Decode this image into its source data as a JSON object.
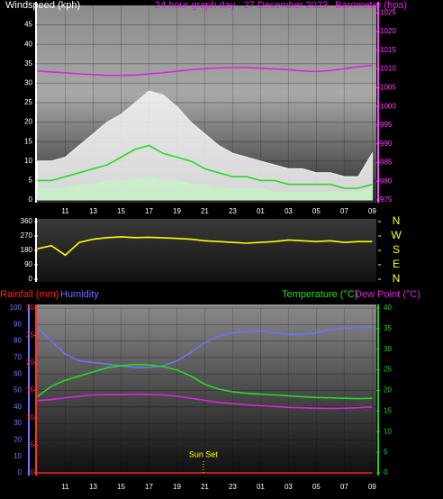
{
  "chart_data": [
    {
      "type": "line",
      "title": "24 hour graph day : 27 December 2023",
      "ylabel": "Windspeed (kph)",
      "y2label": "Barometer (hpa)",
      "xlim": [
        8.9,
        33.3
      ],
      "xticks": [
        11,
        13,
        15,
        17,
        19,
        21,
        23,
        {
          "value": 25,
          "label": "01"
        },
        {
          "value": 27,
          "label": "03"
        },
        {
          "value": 29,
          "label": "05"
        },
        {
          "value": 31,
          "label": "07"
        },
        {
          "value": 33,
          "label": "09"
        }
      ],
      "x": [
        9,
        10,
        11,
        12,
        13,
        14,
        15,
        16,
        17,
        18,
        19,
        20,
        21,
        22,
        23,
        24,
        25,
        26,
        27,
        28,
        29,
        30,
        31,
        32,
        33
      ],
      "ylim": [
        0,
        50
      ],
      "yticks": [
        0,
        5,
        10,
        15,
        20,
        25,
        30,
        35,
        40,
        45
      ],
      "ycolor": "#ffffff",
      "y2lim": [
        975,
        1027
      ],
      "y2ticks": [
        975,
        980,
        985,
        990,
        995,
        1000,
        1005,
        1010,
        1015,
        1020,
        1025
      ],
      "y2color": "#ff40ff",
      "grid": true,
      "series": [
        {
          "color": "#f4f4f4",
          "area": true,
          "values": [
            10,
            10,
            11,
            14,
            17,
            20,
            22,
            25,
            28,
            27,
            24,
            20,
            17,
            14,
            12,
            11,
            10,
            9,
            8,
            8,
            7,
            7,
            6,
            6,
            12
          ]
        },
        {
          "color": "#c8f0c8",
          "area": true,
          "values": [
            3,
            3,
            3,
            4,
            4,
            5,
            5,
            5,
            6,
            5,
            5,
            4,
            4,
            3,
            3,
            3,
            3,
            2,
            2,
            2,
            2,
            2,
            2,
            2,
            3
          ]
        },
        {
          "color": "#22dd22",
          "values": [
            5,
            5,
            6,
            7,
            8,
            9,
            11,
            13,
            14,
            12,
            11,
            10,
            8,
            7,
            6,
            6,
            5,
            5,
            4,
            4,
            4,
            4,
            3,
            3,
            4
          ]
        },
        {
          "color": "#dd22dd",
          "axis": "y2",
          "values": [
            1009.5,
            1009.2,
            1009,
            1008.7,
            1008.5,
            1008.3,
            1008.3,
            1008.4,
            1008.7,
            1009,
            1009.4,
            1009.8,
            1010.1,
            1010.3,
            1010.4,
            1010.4,
            1010.2,
            1010,
            1009.8,
            1009.5,
            1009.3,
            1009.6,
            1010.1,
            1010.6,
            1011
          ]
        }
      ]
    },
    {
      "type": "line",
      "xlim": [
        8.9,
        33.3
      ],
      "x": [
        9,
        10,
        11,
        12,
        13,
        14,
        15,
        16,
        17,
        18,
        19,
        20,
        21,
        22,
        23,
        24,
        25,
        26,
        27,
        28,
        29,
        30,
        31,
        32,
        33
      ],
      "ylim": [
        0,
        360
      ],
      "yticks": [
        0,
        90,
        180,
        270,
        360
      ],
      "ycolor": "#ffffff",
      "y2lim": [
        0,
        360
      ],
      "y2ticks": [
        {
          "value": 360,
          "label": "N"
        },
        {
          "value": 270,
          "label": "W"
        },
        {
          "value": 180,
          "label": "S"
        },
        {
          "value": 90,
          "label": "E"
        },
        {
          "value": 0,
          "label": "N"
        }
      ],
      "y2color": "#ffff00",
      "series": [
        {
          "color": "#ffff00",
          "values": [
            190,
            210,
            150,
            230,
            250,
            260,
            265,
            260,
            262,
            258,
            255,
            250,
            240,
            235,
            230,
            225,
            230,
            235,
            245,
            240,
            235,
            240,
            230,
            235,
            235
          ]
        }
      ]
    },
    {
      "type": "line",
      "xlim": [
        8.9,
        33.3
      ],
      "xticks": [
        11,
        13,
        15,
        17,
        19,
        21,
        23,
        {
          "value": 25,
          "label": "01"
        },
        {
          "value": 27,
          "label": "03"
        },
        {
          "value": 29,
          "label": "05"
        },
        {
          "value": 31,
          "label": "07"
        },
        {
          "value": 33,
          "label": "09"
        }
      ],
      "x": [
        9,
        10,
        11,
        12,
        13,
        14,
        15,
        16,
        17,
        18,
        19,
        20,
        21,
        22,
        23,
        24,
        25,
        26,
        27,
        28,
        29,
        30,
        31,
        32,
        33
      ],
      "ylim": [
        0,
        100
      ],
      "yticks": [
        0,
        10,
        20,
        30,
        40,
        50,
        60,
        70,
        80,
        90,
        100
      ],
      "ycolor": "#7777ff",
      "y2lim": [
        0,
        40
      ],
      "y2ticks": [
        0,
        5,
        10,
        15,
        20,
        25,
        30,
        35,
        40
      ],
      "y2color": "#22cc22",
      "y3lim": [
        0,
        30
      ],
      "y3ticks": [
        0,
        5,
        10,
        15,
        20,
        25,
        30
      ],
      "y3color": "#ff3030",
      "grid": true,
      "series": [
        {
          "name": "Rainfall (mm)",
          "color": "#ff2020",
          "axis": "y3",
          "values": [
            0,
            0,
            0,
            0,
            0,
            0,
            0,
            0,
            0,
            0,
            0,
            0,
            0,
            0,
            0,
            0,
            0,
            0,
            0,
            0,
            0,
            0,
            0,
            0,
            0
          ]
        },
        {
          "name": "Humidity",
          "color": "#7070ff",
          "values": [
            88,
            80,
            72,
            68,
            67,
            66,
            65,
            64,
            64,
            65,
            68,
            73,
            79,
            83,
            85,
            86,
            86,
            85,
            84,
            84,
            85,
            87,
            88,
            88,
            89
          ]
        },
        {
          "name": "Temperature (°C)",
          "color": "#22dd22",
          "axis": "y2",
          "values": [
            18.5,
            21,
            22.5,
            23.5,
            24.5,
            25.5,
            26,
            26.3,
            26.2,
            25.8,
            25,
            23.5,
            21.5,
            20.3,
            19.7,
            19.3,
            19.1,
            18.9,
            18.7,
            18.5,
            18.3,
            18.2,
            18.1,
            18,
            18.1
          ]
        },
        {
          "name": "Dew Point (°C)",
          "color": "#dd22dd",
          "axis": "y2",
          "values": [
            17.5,
            17.8,
            18.2,
            18.6,
            18.9,
            19,
            19,
            19.1,
            19,
            18.9,
            18.6,
            18.1,
            17.6,
            17.1,
            16.8,
            16.5,
            16.3,
            16.1,
            15.9,
            15.8,
            15.7,
            15.6,
            15.7,
            15.8,
            16
          ]
        }
      ],
      "annotations": [
        {
          "text": "Sun Set",
          "x": 20.9
        }
      ]
    }
  ]
}
